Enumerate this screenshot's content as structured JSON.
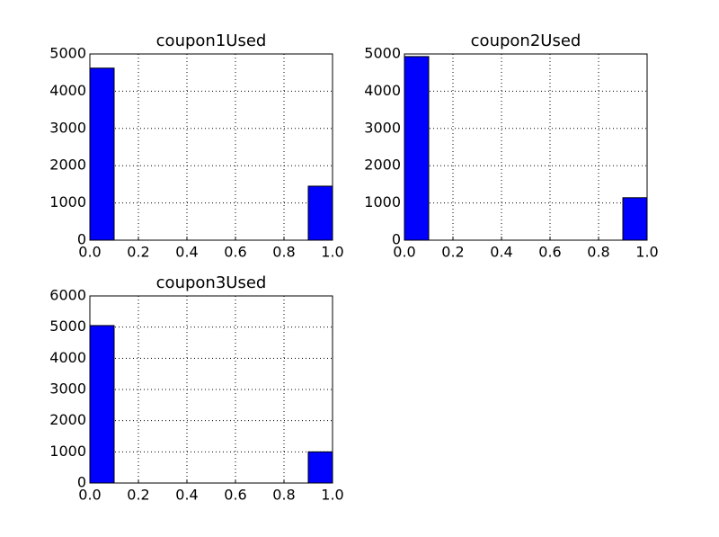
{
  "chart_data": [
    {
      "type": "histogram",
      "title": "coupon1Used",
      "bins": [
        0,
        0.1,
        0.2,
        0.3,
        0.4,
        0.5,
        0.6,
        0.7,
        0.8,
        0.9,
        1.0
      ],
      "counts": [
        4620,
        0,
        0,
        0,
        0,
        0,
        0,
        0,
        0,
        1450
      ],
      "color": "#0000ff",
      "xlim": [
        0,
        1
      ],
      "xticks": [
        {
          "value": 0,
          "label": "0.0"
        },
        0.2,
        0.4,
        0.6,
        0.8,
        {
          "value": 1,
          "label": "1.0"
        }
      ],
      "ylim": [
        0,
        5000
      ],
      "yticks": [
        0,
        1000,
        2000,
        3000,
        4000,
        5000
      ],
      "grid": true
    },
    {
      "type": "histogram",
      "title": "coupon2Used",
      "bins": [
        0,
        0.1,
        0.2,
        0.3,
        0.4,
        0.5,
        0.6,
        0.7,
        0.8,
        0.9,
        1.0
      ],
      "counts": [
        4930,
        0,
        0,
        0,
        0,
        0,
        0,
        0,
        0,
        1140
      ],
      "color": "#0000ff",
      "xlim": [
        0,
        1
      ],
      "xticks": [
        {
          "value": 0,
          "label": "0.0"
        },
        0.2,
        0.4,
        0.6,
        0.8,
        {
          "value": 1,
          "label": "1.0"
        }
      ],
      "ylim": [
        0,
        5000
      ],
      "yticks": [
        0,
        1000,
        2000,
        3000,
        4000,
        5000
      ],
      "grid": true
    },
    {
      "type": "histogram",
      "title": "coupon3Used",
      "bins": [
        0,
        0.1,
        0.2,
        0.3,
        0.4,
        0.5,
        0.6,
        0.7,
        0.8,
        0.9,
        1.0
      ],
      "counts": [
        5050,
        0,
        0,
        0,
        0,
        0,
        0,
        0,
        0,
        1000
      ],
      "color": "#0000ff",
      "xlim": [
        0,
        1
      ],
      "xticks": [
        {
          "value": 0,
          "label": "0.0"
        },
        0.2,
        0.4,
        0.6,
        0.8,
        {
          "value": 1,
          "label": "1.0"
        }
      ],
      "ylim": [
        0,
        6000
      ],
      "yticks": [
        0,
        1000,
        2000,
        3000,
        4000,
        5000,
        6000
      ],
      "grid": true
    }
  ]
}
